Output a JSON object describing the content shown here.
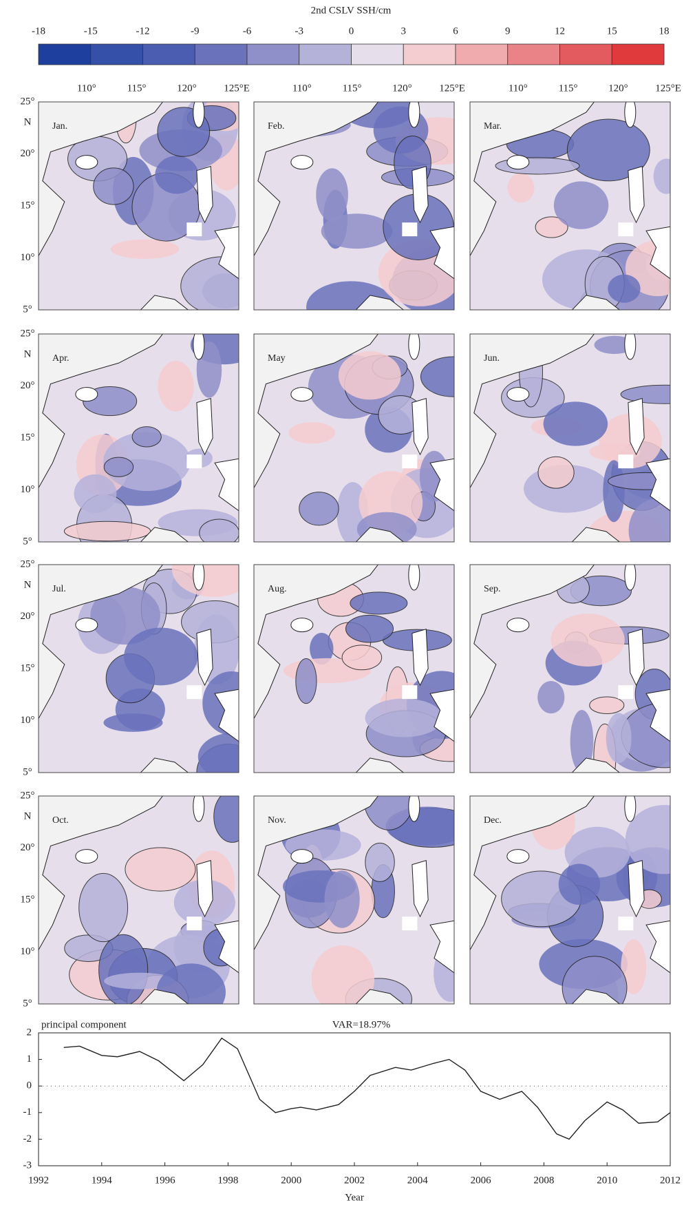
{
  "colorbar": {
    "title": "2nd CSLV SSH/cm",
    "ticks": [
      -18,
      -15,
      -12,
      -9,
      -6,
      -3,
      0,
      3,
      6,
      9,
      12,
      15,
      18
    ],
    "colors": [
      "#1e3f9e",
      "#3550a8",
      "#4a5db0",
      "#6a72bc",
      "#8f8fc9",
      "#b5b2da",
      "#e6dfeb",
      "#f4cdd0",
      "#efabae",
      "#e98387",
      "#e45b5f",
      "#e03a3d"
    ]
  },
  "maps": {
    "panels": [
      "Jan.",
      "Feb.",
      "Mar.",
      "Apr.",
      "May",
      "Jun.",
      "Jul.",
      "Aug.",
      "Sep.",
      "Oct.",
      "Nov.",
      "Dec."
    ],
    "lon_labels": [
      "110°",
      "115°",
      "120°",
      "125°E"
    ],
    "lat_labels": [
      "25°",
      "N",
      "20°",
      "15°",
      "10°",
      "5°"
    ]
  },
  "chart_data": {
    "type": "line",
    "title": "principal component",
    "annotation": "VAR=18.97%",
    "x_label": "Year",
    "x": [
      1992.8,
      1993.3,
      1994,
      1994.5,
      1995.2,
      1995.8,
      1996.6,
      1997.2,
      1997.8,
      1998.3,
      1999,
      1999.5,
      2000,
      2000.3,
      2000.8,
      2001.5,
      2002,
      2002.5,
      2003.3,
      2003.8,
      2004.5,
      2005,
      2005.5,
      2006,
      2006.6,
      2007.3,
      2007.8,
      2008.4,
      2008.8,
      2009.3,
      2010,
      2010.5,
      2011,
      2011.6,
      2012
    ],
    "values": [
      1.45,
      1.5,
      1.15,
      1.1,
      1.3,
      0.95,
      0.2,
      0.8,
      1.8,
      1.4,
      -0.5,
      -1.0,
      -0.85,
      -0.8,
      -0.9,
      -0.7,
      -0.2,
      0.4,
      0.7,
      0.6,
      0.85,
      1.0,
      0.6,
      -0.2,
      -0.5,
      -0.2,
      -0.8,
      -1.8,
      -2.0,
      -1.3,
      -0.6,
      -0.9,
      -1.4,
      -1.35,
      -1.0
    ],
    "color": "#222222",
    "xlim": [
      1992,
      2012
    ],
    "ylim": [
      -3,
      2
    ],
    "xticks": [
      1992,
      1994,
      1996,
      1998,
      2000,
      2002,
      2004,
      2006,
      2008,
      2010,
      2012
    ],
    "yticks": [
      -3,
      -2,
      -1,
      0,
      1,
      2
    ],
    "hline": 0
  }
}
